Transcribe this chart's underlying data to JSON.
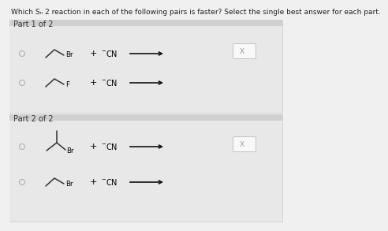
{
  "title": "Which Sₙ 2 reaction in each of the following pairs is faster? Select the single best answer for each part.",
  "part1_label": "Part 1 of 2",
  "part2_label": "Part 2 of 2",
  "bg_color": "#f0f0f0",
  "panel_bg": "#d8d8d8",
  "white_bg": "#ffffff",
  "radio_color": "#aaaaaa",
  "text_color": "#000000",
  "arrow_color": "#111111",
  "font_size": 6.5,
  "label_font_size": 7,
  "x_mark": "X",
  "title_bg": "#f0f0f0"
}
